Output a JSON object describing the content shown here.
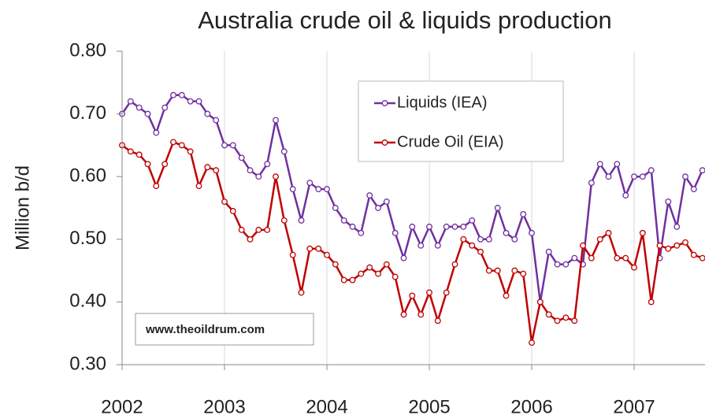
{
  "chart_data": {
    "type": "line",
    "title": "Australia crude oil & liquids production",
    "y_label": "Million b/d",
    "annotation": "www.theoildrum.com",
    "x": [
      2002,
      2002.083,
      2002.167,
      2002.25,
      2002.333,
      2002.417,
      2002.5,
      2002.583,
      2002.667,
      2002.75,
      2002.833,
      2002.917,
      2003,
      2003.083,
      2003.167,
      2003.25,
      2003.333,
      2003.417,
      2003.5,
      2003.583,
      2003.667,
      2003.75,
      2003.833,
      2003.917,
      2004,
      2004.083,
      2004.167,
      2004.25,
      2004.333,
      2004.417,
      2004.5,
      2004.583,
      2004.667,
      2004.75,
      2004.833,
      2004.917,
      2005,
      2005.083,
      2005.167,
      2005.25,
      2005.333,
      2005.417,
      2005.5,
      2005.583,
      2005.667,
      2005.75,
      2005.833,
      2005.917,
      2006,
      2006.083,
      2006.167,
      2006.25,
      2006.333,
      2006.417,
      2006.5,
      2006.583,
      2006.667,
      2006.75,
      2006.833,
      2006.917,
      2007,
      2007.083,
      2007.167,
      2007.25,
      2007.333,
      2007.417,
      2007.5,
      2007.583,
      2007.667
    ],
    "series": [
      {
        "name": "Liquids (IEA)",
        "color": "#7030a0",
        "values": [
          0.7,
          0.72,
          0.71,
          0.7,
          0.67,
          0.71,
          0.73,
          0.73,
          0.72,
          0.72,
          0.7,
          0.69,
          0.65,
          0.65,
          0.63,
          0.61,
          0.6,
          0.62,
          0.69,
          0.64,
          0.58,
          0.53,
          0.59,
          0.58,
          0.58,
          0.55,
          0.53,
          0.52,
          0.51,
          0.57,
          0.55,
          0.56,
          0.51,
          0.47,
          0.52,
          0.49,
          0.52,
          0.49,
          0.52,
          0.52,
          0.52,
          0.53,
          0.5,
          0.5,
          0.55,
          0.51,
          0.5,
          0.54,
          0.51,
          0.4,
          0.48,
          0.46,
          0.46,
          0.47,
          0.46,
          0.59,
          0.62,
          0.6,
          0.62,
          0.57,
          0.6,
          0.6,
          0.61,
          0.47,
          0.56,
          0.52,
          0.6,
          0.58,
          0.61
        ]
      },
      {
        "name": "Crude Oil (EIA)",
        "color": "#c00000",
        "values": [
          0.65,
          0.64,
          0.635,
          0.62,
          0.585,
          0.62,
          0.655,
          0.65,
          0.64,
          0.585,
          0.615,
          0.61,
          0.56,
          0.545,
          0.515,
          0.5,
          0.515,
          0.515,
          0.6,
          0.53,
          0.475,
          0.415,
          0.485,
          0.485,
          0.475,
          0.46,
          0.435,
          0.435,
          0.445,
          0.455,
          0.445,
          0.46,
          0.44,
          0.38,
          0.41,
          0.38,
          0.415,
          0.37,
          0.415,
          0.46,
          0.5,
          0.49,
          0.48,
          0.45,
          0.45,
          0.41,
          0.45,
          0.445,
          0.335,
          0.4,
          0.38,
          0.37,
          0.375,
          0.37,
          0.49,
          0.47,
          0.5,
          0.51,
          0.47,
          0.47,
          0.455,
          0.51,
          0.4,
          0.49,
          0.485,
          0.49,
          0.495,
          0.475,
          0.47
        ]
      }
    ],
    "xlim": [
      2002,
      2007.692
    ],
    "xticks": [
      2002,
      2003,
      2004,
      2005,
      2006,
      2007
    ],
    "ylim": [
      0.3,
      0.8
    ],
    "yticks": [
      {
        "value": 0.3,
        "label": "0.30"
      },
      {
        "value": 0.4,
        "label": "0.40"
      },
      {
        "value": 0.5,
        "label": "0.50"
      },
      {
        "value": 0.6,
        "label": "0.60"
      },
      {
        "value": 0.7,
        "label": "0.70"
      },
      {
        "value": 0.8,
        "label": "0.80"
      }
    ],
    "grid": "x",
    "legend": "upper center"
  }
}
